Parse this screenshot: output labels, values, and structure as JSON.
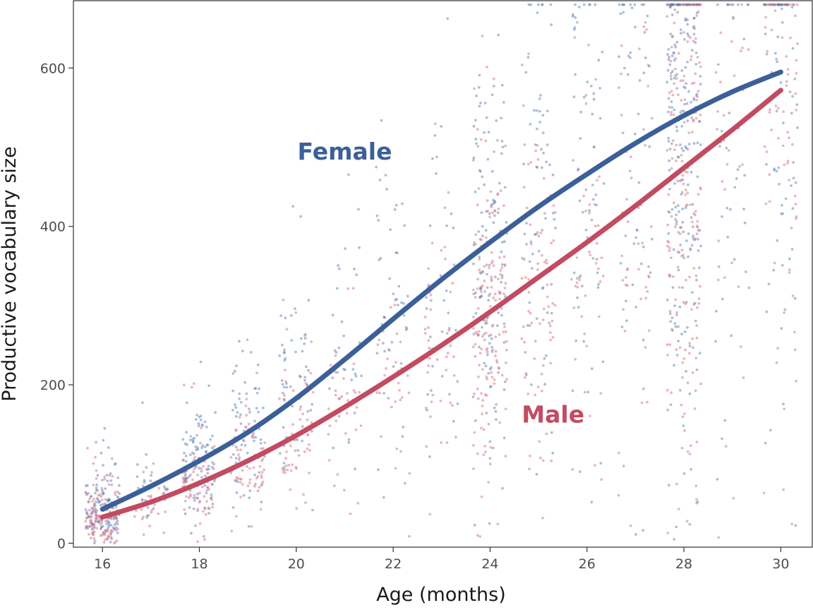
{
  "chart_data": {
    "type": "scatter",
    "title": "",
    "xlabel": "Age (months)",
    "ylabel": "Productive vocabulary size",
    "xlim": [
      15.4,
      30.65
    ],
    "ylim": [
      -5,
      685
    ],
    "x_ticks": [
      "16",
      "18",
      "20",
      "22",
      "24",
      "26",
      "28",
      "30"
    ],
    "y_ticks": [
      "0",
      "200",
      "400",
      "600"
    ],
    "grid": false,
    "legend": "none (direct labels)",
    "series": [
      {
        "name": "Female",
        "color": "#3b5f99",
        "point_color": "#5b7fb5",
        "label_at": {
          "x": 21.0,
          "y": 495
        },
        "trend": [
          {
            "x": 16,
            "y": 43
          },
          {
            "x": 17,
            "y": 72
          },
          {
            "x": 18,
            "y": 104
          },
          {
            "x": 19,
            "y": 140
          },
          {
            "x": 20,
            "y": 183
          },
          {
            "x": 21,
            "y": 232
          },
          {
            "x": 22,
            "y": 283
          },
          {
            "x": 23,
            "y": 333
          },
          {
            "x": 24,
            "y": 380
          },
          {
            "x": 25,
            "y": 425
          },
          {
            "x": 26,
            "y": 466
          },
          {
            "x": 27,
            "y": 505
          },
          {
            "x": 28,
            "y": 540
          },
          {
            "x": 29,
            "y": 570
          },
          {
            "x": 30,
            "y": 595
          }
        ]
      },
      {
        "name": "Male",
        "color": "#c24b62",
        "point_color": "#d4707f",
        "label_at": {
          "x": 25.3,
          "y": 163
        },
        "trend": [
          {
            "x": 16,
            "y": 33
          },
          {
            "x": 17,
            "y": 52
          },
          {
            "x": 18,
            "y": 76
          },
          {
            "x": 19,
            "y": 104
          },
          {
            "x": 20,
            "y": 136
          },
          {
            "x": 21,
            "y": 172
          },
          {
            "x": 22,
            "y": 210
          },
          {
            "x": 23,
            "y": 250
          },
          {
            "x": 24,
            "y": 292
          },
          {
            "x": 25,
            "y": 336
          },
          {
            "x": 26,
            "y": 380
          },
          {
            "x": 27,
            "y": 426
          },
          {
            "x": 28,
            "y": 474
          },
          {
            "x": 29,
            "y": 522
          },
          {
            "x": 30,
            "y": 572
          }
        ]
      }
    ],
    "age_groups": [
      {
        "age": 16,
        "count": 260,
        "spread": 0.35
      },
      {
        "age": 17,
        "count": 60,
        "spread": 0.35
      },
      {
        "age": 18,
        "count": 180,
        "spread": 0.35
      },
      {
        "age": 19,
        "count": 130,
        "spread": 0.35
      },
      {
        "age": 20,
        "count": 110,
        "spread": 0.35
      },
      {
        "age": 21,
        "count": 70,
        "spread": 0.35
      },
      {
        "age": 22,
        "count": 80,
        "spread": 0.35
      },
      {
        "age": 23,
        "count": 80,
        "spread": 0.35
      },
      {
        "age": 24,
        "count": 300,
        "spread": 0.35
      },
      {
        "age": 25,
        "count": 150,
        "spread": 0.35
      },
      {
        "age": 26,
        "count": 110,
        "spread": 0.35
      },
      {
        "age": 27,
        "count": 100,
        "spread": 0.35
      },
      {
        "age": 28,
        "count": 420,
        "spread": 0.35
      },
      {
        "age": 29,
        "count": 70,
        "spread": 0.35
      },
      {
        "age": 30,
        "count": 150,
        "spread": 0.35
      }
    ]
  }
}
